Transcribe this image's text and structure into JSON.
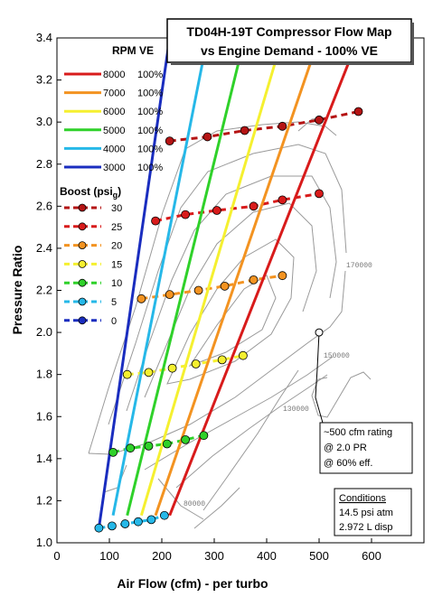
{
  "chart_data": {
    "type": "line",
    "title_line1": "TD04H-19T Compressor Flow Map",
    "title_line2": "vs Engine Demand - 100% VE",
    "xlabel": "Air Flow (cfm) - per turbo",
    "ylabel": "Pressure Ratio",
    "xlim": [
      0,
      700
    ],
    "ylim": [
      1.0,
      3.4
    ],
    "x_ticks": [
      0,
      100,
      200,
      300,
      400,
      500,
      600
    ],
    "y_ticks": [
      "1.0",
      "1.2",
      "1.4",
      "1.6",
      "1.8",
      "2.0",
      "2.2",
      "2.4",
      "2.6",
      "2.8",
      "3.0",
      "3.2",
      "3.4"
    ],
    "grid": false,
    "legend": {
      "placement": "top-left",
      "rpm_header": "RPM",
      "ve_header": "VE",
      "boost_header": "Boost (psi",
      "boost_header_sub": "g",
      "boost_header_close": ")"
    },
    "rpm_series": [
      {
        "rpm": "8000",
        "ve": "100%",
        "color": "#d81b1b",
        "points": [
          [
            215,
            1.13
          ],
          [
            575,
            3.4
          ]
        ]
      },
      {
        "rpm": "7000",
        "ve": "100%",
        "color": "#f39321",
        "points": [
          [
            188,
            1.13
          ],
          [
            500,
            3.4
          ]
        ]
      },
      {
        "rpm": "6000",
        "ve": "100%",
        "color": "#f5f030",
        "points": [
          [
            161,
            1.13
          ],
          [
            430,
            3.4
          ]
        ]
      },
      {
        "rpm": "5000",
        "ve": "100%",
        "color": "#2fd12a",
        "points": [
          [
            134,
            1.13
          ],
          [
            358,
            3.4
          ]
        ]
      },
      {
        "rpm": "4000",
        "ve": "100%",
        "color": "#26b8e8",
        "points": [
          [
            107,
            1.13
          ],
          [
            287,
            3.4
          ]
        ]
      },
      {
        "rpm": "3000",
        "ve": "100%",
        "color": "#1a2dbf",
        "points": [
          [
            80,
            1.07
          ],
          [
            215,
            3.4
          ]
        ]
      }
    ],
    "boost_series": [
      {
        "psi": "30",
        "color": "#b51414",
        "points": [
          [
            215,
            2.91
          ],
          [
            287,
            2.93
          ],
          [
            358,
            2.96
          ],
          [
            430,
            2.98
          ],
          [
            500,
            3.01
          ],
          [
            575,
            3.05
          ]
        ]
      },
      {
        "psi": "25",
        "color": "#d81b1b",
        "points": [
          [
            188,
            2.53
          ],
          [
            245,
            2.56
          ],
          [
            305,
            2.58
          ],
          [
            375,
            2.6
          ],
          [
            430,
            2.63
          ],
          [
            500,
            2.66
          ]
        ]
      },
      {
        "psi": "20",
        "color": "#f39321",
        "points": [
          [
            161,
            2.16
          ],
          [
            215,
            2.18
          ],
          [
            270,
            2.2
          ],
          [
            320,
            2.22
          ],
          [
            375,
            2.25
          ],
          [
            430,
            2.27
          ]
        ]
      },
      {
        "psi": "15",
        "color": "#f5f030",
        "points": [
          [
            134,
            1.8
          ],
          [
            175,
            1.81
          ],
          [
            220,
            1.83
          ],
          [
            265,
            1.85
          ],
          [
            315,
            1.87
          ],
          [
            355,
            1.89
          ]
        ]
      },
      {
        "psi": "10",
        "color": "#2fd12a",
        "points": [
          [
            107,
            1.43
          ],
          [
            140,
            1.45
          ],
          [
            175,
            1.46
          ],
          [
            210,
            1.47
          ],
          [
            245,
            1.49
          ],
          [
            280,
            1.51
          ]
        ]
      },
      {
        "psi": "5",
        "color": "#26b8e8",
        "points": [
          [
            80,
            1.07
          ],
          [
            105,
            1.08
          ],
          [
            130,
            1.09
          ],
          [
            155,
            1.1
          ],
          [
            180,
            1.11
          ],
          [
            205,
            1.13
          ]
        ]
      },
      {
        "psi": "0",
        "color": "#1a2dbf",
        "points": []
      }
    ],
    "rating_point": {
      "x": 500,
      "y": 2.0
    },
    "annotation_rating": [
      "~500 cfm rating",
      "@ 2.0 PR",
      "@ 60% eff."
    ],
    "conditions_header": "Conditions",
    "conditions": [
      "14.5 psi atm",
      "2.972 L disp"
    ],
    "map_speed_labels": [
      "170000",
      "150000",
      "130000",
      "80000"
    ]
  }
}
